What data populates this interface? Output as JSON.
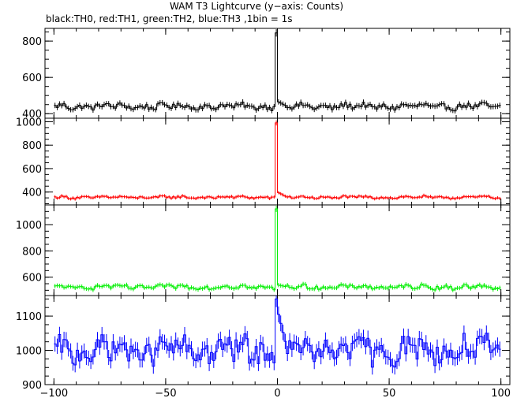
{
  "title": "WAM T3 Lightcurve (y−axis: Counts)",
  "subtitle": "black:TH0, red:TH1, green:TH2, blue:TH3 ,1bin = 1s",
  "chart_data": [
    {
      "type": "line",
      "series": [
        {
          "color": "#000000",
          "base": 440,
          "noise": 18,
          "peak": 845,
          "after": 465
        }
      ],
      "ylim": [
        375,
        870
      ],
      "yticks": [
        "400",
        "600",
        "800"
      ],
      "xlim": [
        -104,
        104
      ],
      "xticks": [],
      "grid": false
    },
    {
      "type": "line",
      "series": [
        {
          "color": "#ff0000",
          "base": 355,
          "noise": 12,
          "peak": 990,
          "after": 395
        }
      ],
      "ylim": [
        290,
        1030
      ],
      "yticks": [
        "400",
        "600",
        "800",
        "1000"
      ],
      "xlim": [
        -104,
        104
      ],
      "xticks": [],
      "grid": false
    },
    {
      "type": "line",
      "series": [
        {
          "color": "#00ee00",
          "base": 525,
          "noise": 18,
          "peak": 1120,
          "after": 540
        }
      ],
      "ylim": [
        460,
        1150
      ],
      "yticks": [
        "600",
        "800",
        "1000"
      ],
      "xlim": [
        -104,
        104
      ],
      "xticks": [],
      "grid": false
    },
    {
      "type": "line",
      "series": [
        {
          "color": "#0000ff",
          "base": 1000,
          "noise": 40,
          "peak": 1150,
          "after": 1105
        }
      ],
      "ylim": [
        900,
        1160
      ],
      "yticks": [
        "900",
        "1000",
        "1100"
      ],
      "xlim": [
        -104,
        104
      ],
      "xticks": [
        "−100",
        "−50",
        "0",
        "50",
        "100"
      ],
      "grid": false
    }
  ]
}
